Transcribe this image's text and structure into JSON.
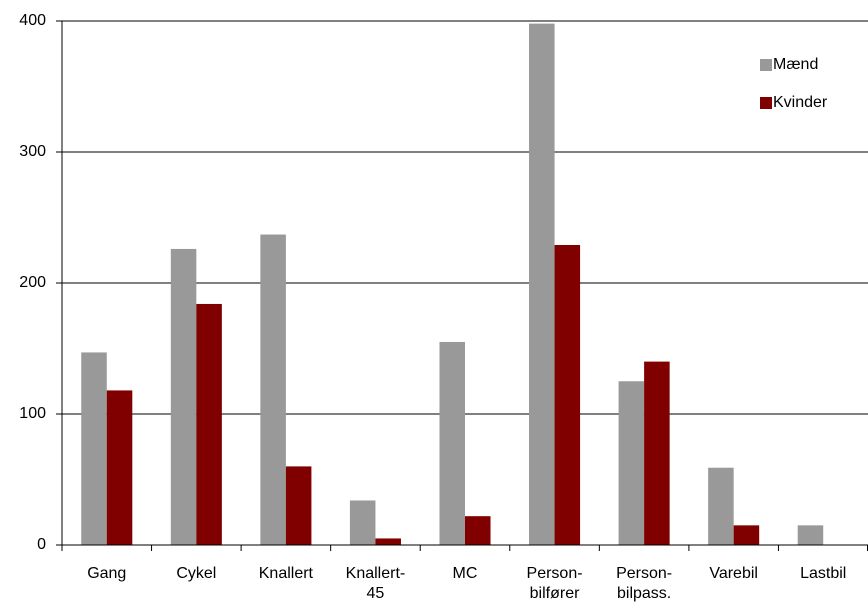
{
  "chart_data": {
    "type": "bar",
    "categories": [
      "Gang",
      "Cykel",
      "Knallert",
      "Knallert-\n45",
      "MC",
      "Person-\nbilfører",
      "Person-\nbilpass.",
      "Varebil",
      "Lastbil"
    ],
    "series": [
      {
        "name": "Mænd",
        "color": "#999999",
        "values": [
          147,
          226,
          237,
          34,
          155,
          398,
          125,
          59,
          15
        ]
      },
      {
        "name": "Kvinder",
        "color": "#800000",
        "values": [
          118,
          184,
          60,
          5,
          22,
          229,
          140,
          15,
          0
        ]
      }
    ],
    "ylim": [
      0,
      400
    ],
    "yticks": [
      0,
      100,
      200,
      300,
      400
    ],
    "grid": true,
    "legend": "top-right"
  }
}
